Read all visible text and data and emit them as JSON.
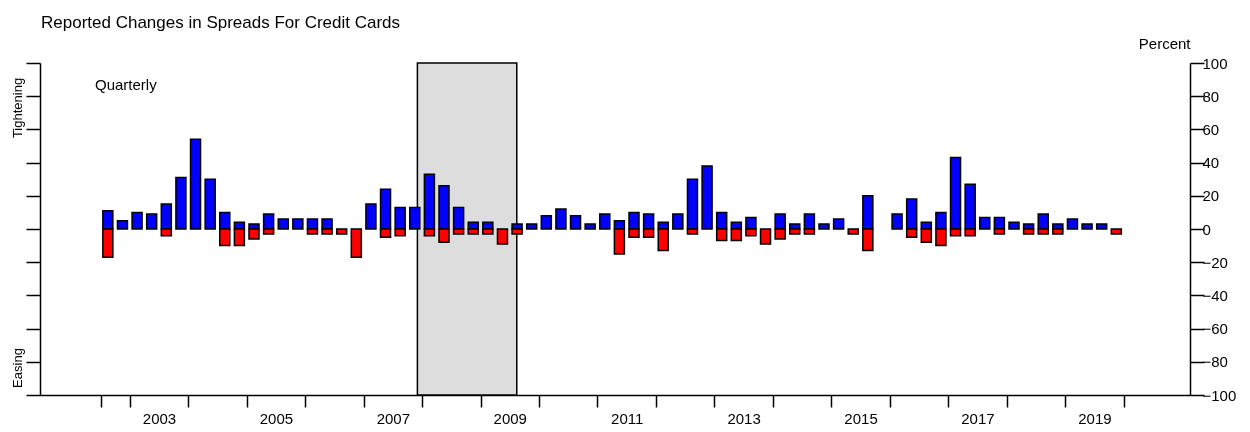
{
  "chart_data": {
    "type": "bar",
    "title": "Reported Changes in Spreads For Credit Cards",
    "ylabel": "Percent",
    "annotations": [
      "Quarterly",
      "Tightening",
      "Easing"
    ],
    "x": [
      2002.625,
      2002.875,
      2003.125,
      2003.375,
      2003.625,
      2003.875,
      2004.125,
      2004.375,
      2004.625,
      2004.875,
      2005.125,
      2005.375,
      2005.625,
      2005.875,
      2006.125,
      2006.375,
      2006.625,
      2006.875,
      2007.125,
      2007.375,
      2007.625,
      2007.875,
      2008.125,
      2008.375,
      2008.625,
      2008.875,
      2009.125,
      2009.375,
      2009.625,
      2009.875,
      2010.125,
      2010.375,
      2010.625,
      2010.875,
      2011.125,
      2011.375,
      2011.625,
      2011.875,
      2012.125,
      2012.375,
      2012.625,
      2012.875,
      2013.125,
      2013.375,
      2013.625,
      2013.875,
      2014.125,
      2014.375,
      2014.625,
      2014.875,
      2015.125,
      2015.375,
      2015.625,
      2016.125,
      2016.375,
      2016.625,
      2016.875,
      2017.125,
      2017.375,
      2017.625,
      2017.875,
      2018.125,
      2018.375,
      2018.625,
      2018.875,
      2019.125,
      2019.375,
      2019.625,
      2019.875
    ],
    "series": [
      {
        "color": "#0000ff",
        "values": [
          11,
          5,
          10,
          9,
          15,
          31,
          54,
          30,
          10,
          4,
          3,
          9,
          6,
          6,
          6,
          6,
          null,
          null,
          15,
          24,
          13,
          13,
          33,
          26,
          13,
          4,
          4,
          null,
          3,
          3,
          8,
          12,
          8,
          3,
          9,
          5,
          10,
          9,
          4,
          9,
          30,
          38,
          10,
          4,
          7,
          null,
          9,
          3,
          9,
          3,
          6,
          null,
          20,
          9,
          18,
          4,
          10,
          43,
          27,
          7,
          7,
          4,
          3,
          9,
          3,
          6,
          3,
          3,
          null
        ]
      },
      {
        "color": "#ff0000",
        "values": [
          -17,
          null,
          null,
          null,
          -4,
          null,
          null,
          null,
          -10,
          -10,
          -6,
          -3,
          null,
          null,
          -3,
          -3,
          -3,
          -17,
          null,
          -5,
          -4,
          null,
          -4,
          -8,
          -3,
          -3,
          -3,
          -9,
          -3,
          null,
          null,
          null,
          null,
          null,
          null,
          -15,
          -5,
          -5,
          -13,
          null,
          -3,
          null,
          -7,
          -7,
          -4,
          -9,
          -6,
          -3,
          -3,
          null,
          null,
          -3,
          -13,
          null,
          -5,
          -8,
          -10,
          -4,
          -4,
          null,
          -3,
          null,
          -3,
          -3,
          -3,
          null,
          null,
          null,
          -3
        ]
      }
    ],
    "xlim": [
      2001.55,
      2021.05
    ],
    "xticks": [
      {
        "value": 2002.5,
        "label": null
      },
      {
        "value": 2003,
        "label": null
      },
      {
        "value": 2004,
        "label": null
      },
      {
        "value": 2005,
        "label": null
      },
      {
        "value": 2006,
        "label": null
      },
      {
        "value": 2007,
        "label": null
      },
      {
        "value": 2008,
        "label": null
      },
      {
        "value": 2009,
        "label": null
      },
      {
        "value": 2010,
        "label": null
      },
      {
        "value": 2011,
        "label": null
      },
      {
        "value": 2012,
        "label": null
      },
      {
        "value": 2013,
        "label": null
      },
      {
        "value": 2014,
        "label": null
      },
      {
        "value": 2015,
        "label": null
      },
      {
        "value": 2016,
        "label": null
      },
      {
        "value": 2017,
        "label": null
      },
      {
        "value": 2018,
        "label": null
      },
      {
        "value": 2019,
        "label": null
      },
      {
        "value": 2020,
        "label": null
      },
      {
        "value": 2003.5,
        "label": "2003"
      },
      {
        "value": 2005.5,
        "label": "2005"
      },
      {
        "value": 2007.5,
        "label": "2007"
      },
      {
        "value": 2009.5,
        "label": "2009"
      },
      {
        "value": 2011.5,
        "label": "2011"
      },
      {
        "value": 2013.5,
        "label": "2013"
      },
      {
        "value": 2015.5,
        "label": "2015"
      },
      {
        "value": 2017.5,
        "label": "2017"
      },
      {
        "value": 2019.5,
        "label": "2019"
      }
    ],
    "ylim": [
      -100,
      100
    ],
    "yticks": [
      -100,
      -80,
      -60,
      -40,
      -20,
      0,
      20,
      40,
      60,
      80,
      100
    ],
    "bands": [
      {
        "axis": "x",
        "from": 2007.92,
        "to": 2009.62,
        "color": "#dddddd"
      }
    ],
    "stacked": true,
    "grid": false
  }
}
